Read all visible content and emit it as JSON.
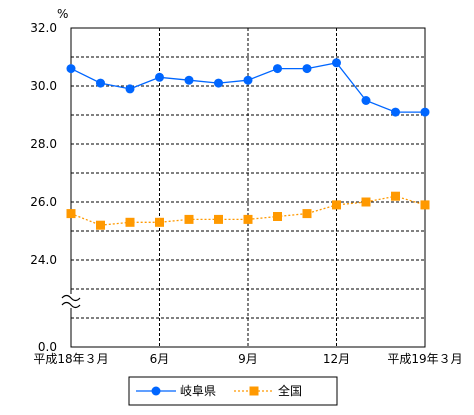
{
  "chart_data": {
    "type": "line",
    "unit_label": "%",
    "y_ticks": [
      "32.0",
      "30.0",
      "28.0",
      "26.0",
      "24.0",
      "0.0"
    ],
    "axis_break": true,
    "x_tick_labels": [
      "平成18年３月",
      "6月",
      "9月",
      "12月",
      "平成19年３月"
    ],
    "months_count": 13,
    "grid": true,
    "legend_position": "bottom",
    "series": [
      {
        "name": "岐阜県",
        "color": "#0066ff",
        "marker": "circle",
        "line_style": "solid",
        "values": [
          30.6,
          30.1,
          29.9,
          30.3,
          30.2,
          30.1,
          30.2,
          30.6,
          30.6,
          30.8,
          29.5,
          29.1,
          29.1
        ]
      },
      {
        "name": "全国",
        "color": "#ff9900",
        "marker": "square",
        "line_style": "dotted",
        "values": [
          25.6,
          25.2,
          25.3,
          25.3,
          25.4,
          25.4,
          25.4,
          25.5,
          25.6,
          25.9,
          26.0,
          26.2,
          25.9
        ]
      }
    ]
  }
}
